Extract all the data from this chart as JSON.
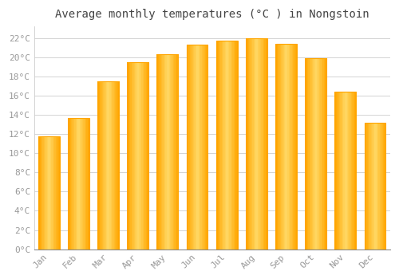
{
  "title": "Average monthly temperatures (°C ) in Nongstoin",
  "months": [
    "Jan",
    "Feb",
    "Mar",
    "Apr",
    "May",
    "Jun",
    "Jul",
    "Aug",
    "Sep",
    "Oct",
    "Nov",
    "Dec"
  ],
  "values": [
    11.8,
    13.7,
    17.5,
    19.5,
    20.3,
    21.3,
    21.7,
    22.0,
    21.4,
    19.9,
    16.4,
    13.2
  ],
  "bar_color_center": "#FFD966",
  "bar_color_edge": "#FFA500",
  "background_color": "#FFFFFF",
  "grid_color": "#CCCCCC",
  "yticks": [
    0,
    2,
    4,
    6,
    8,
    10,
    12,
    14,
    16,
    18,
    20,
    22
  ],
  "ylim": [
    0,
    23.2
  ],
  "title_fontsize": 10,
  "tick_fontsize": 8,
  "tick_color": "#999999",
  "title_color": "#444444",
  "bar_width": 0.7
}
